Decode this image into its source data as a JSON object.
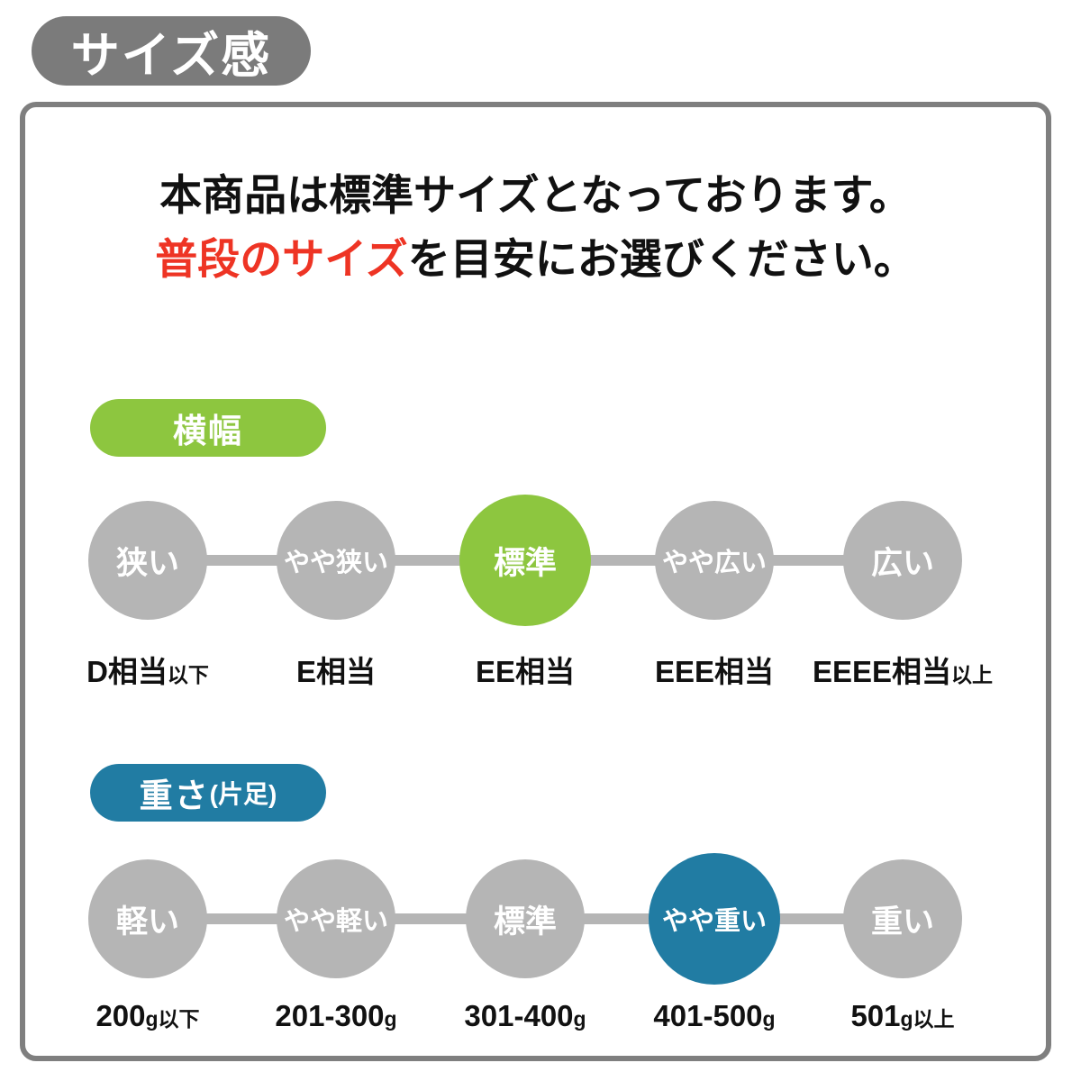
{
  "header": {
    "title": "サイズ感"
  },
  "intro": {
    "line1": "本商品は標準サイズとなっております。",
    "line2_highlight": "普段のサイズ",
    "line2_rest": "を目安にお選びください。",
    "highlight_color": "#ee3424"
  },
  "colors": {
    "header_badge_bg": "#7b7b7b",
    "panel_border": "#7f7f7f",
    "inactive_circle": "#b5b5b5"
  },
  "sections": [
    {
      "id": "width",
      "badge_label": "横幅",
      "badge_suffix": "",
      "accent_color": "#8dc63f",
      "selected_index": 2,
      "steps": [
        {
          "circle_label": "狭い",
          "value_main": "D相当",
          "value_suffix": "以下"
        },
        {
          "circle_label": "やや狭い",
          "value_main": "E相当",
          "value_suffix": ""
        },
        {
          "circle_label": "標準",
          "value_main": "EE相当",
          "value_suffix": ""
        },
        {
          "circle_label": "やや広い",
          "value_main": "EEE相当",
          "value_suffix": ""
        },
        {
          "circle_label": "広い",
          "value_main": "EEEE相当",
          "value_suffix": "以上"
        }
      ]
    },
    {
      "id": "weight",
      "badge_label": "重さ",
      "badge_suffix": "(片足)",
      "accent_color": "#217ca3",
      "selected_index": 3,
      "steps": [
        {
          "circle_label": "軽い",
          "value_main": "200",
          "value_suffix": "g以下"
        },
        {
          "circle_label": "やや軽い",
          "value_main": "201-300",
          "value_suffix": "g"
        },
        {
          "circle_label": "標準",
          "value_main": "301-400",
          "value_suffix": "g"
        },
        {
          "circle_label": "やや重い",
          "value_main": "401-500",
          "value_suffix": "g"
        },
        {
          "circle_label": "重い",
          "value_main": "501",
          "value_suffix": "g以上"
        }
      ]
    }
  ]
}
